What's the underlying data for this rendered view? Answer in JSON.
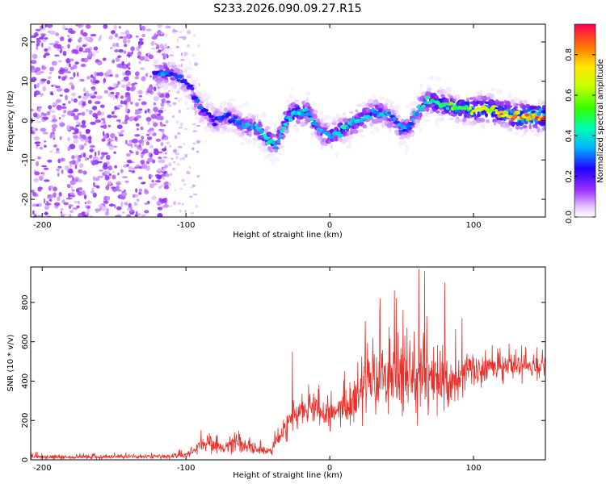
{
  "title": "S233.2026.090.09.27.R15",
  "chart_data": [
    {
      "type": "heatmap",
      "name": "spectrogram",
      "xlabel": "Height of straight line (km)",
      "ylabel": "Frequency (Hz)",
      "xlim": [
        -208,
        150
      ],
      "ylim": [
        -24.5,
        24.5
      ],
      "xticks": [
        -200,
        -100,
        0,
        100
      ],
      "yticks": [
        -20,
        -10,
        0,
        10,
        20
      ],
      "colorbar": {
        "label": "Normalized spectral amplitude",
        "range": [
          0.0,
          0.95
        ],
        "ticks": [
          0.0,
          0.2,
          0.4,
          0.6,
          0.8
        ],
        "ticklabels": [
          "0.0",
          "0.2",
          "0.4",
          "0.6",
          "0.8"
        ]
      },
      "ridge": {
        "x": [
          -122,
          -112,
          -105,
          -98,
          -90,
          -80,
          -70,
          -60,
          -50,
          -42,
          -37,
          -30,
          -25,
          -20,
          -15,
          -10,
          -5,
          0,
          5,
          10,
          20,
          30,
          38,
          45,
          50,
          55,
          60,
          65,
          70,
          80,
          90,
          100,
          110,
          120,
          130,
          140,
          150
        ],
        "frequency": [
          12,
          12,
          11,
          9,
          3,
          0,
          1,
          -1,
          -2,
          -5,
          -6,
          0,
          2,
          2,
          2,
          -1,
          -3,
          -4,
          -3,
          -2,
          0,
          2,
          2,
          0,
          -2,
          -2,
          2,
          4,
          5,
          4,
          3,
          3,
          3,
          2,
          1,
          1,
          1
        ],
        "amplitude": [
          0.3,
          0.35,
          0.3,
          0.25,
          0.3,
          0.3,
          0.3,
          0.35,
          0.4,
          0.45,
          0.4,
          0.45,
          0.45,
          0.45,
          0.45,
          0.4,
          0.35,
          0.4,
          0.45,
          0.45,
          0.45,
          0.4,
          0.4,
          0.35,
          0.35,
          0.35,
          0.4,
          0.45,
          0.5,
          0.55,
          0.6,
          0.7,
          0.75,
          0.8,
          0.85,
          0.9,
          0.9
        ]
      }
    },
    {
      "type": "line",
      "name": "snr",
      "xlabel": "Height of straight line (km)",
      "ylabel": "SNR (10 * v/v)",
      "xlim": [
        -208,
        150
      ],
      "ylim": [
        0,
        980
      ],
      "xticks": [
        -200,
        -100,
        0,
        100
      ],
      "yticks": [
        0,
        200,
        400,
        600,
        800
      ],
      "color": "#e8302a",
      "envelope": {
        "x": [
          -208,
          -180,
          -150,
          -120,
          -110,
          -100,
          -95,
          -90,
          -85,
          -80,
          -75,
          -70,
          -65,
          -60,
          -55,
          -50,
          -45,
          -40,
          -35,
          -30,
          -28,
          -25,
          -20,
          -15,
          -10,
          -5,
          0,
          5,
          10,
          15,
          20,
          25,
          30,
          35,
          40,
          45,
          50,
          55,
          60,
          65,
          70,
          75,
          80,
          90,
          100,
          110,
          120,
          130,
          140,
          150
        ],
        "mean": [
          15,
          12,
          15,
          15,
          18,
          25,
          45,
          70,
          90,
          80,
          60,
          70,
          90,
          70,
          60,
          50,
          45,
          60,
          110,
          160,
          200,
          230,
          250,
          240,
          260,
          240,
          220,
          250,
          280,
          300,
          330,
          360,
          380,
          390,
          400,
          410,
          420,
          410,
          400,
          420,
          430,
          410,
          400,
          420,
          450,
          460,
          470,
          475,
          475,
          480
        ],
        "spread": [
          12,
          10,
          10,
          10,
          12,
          15,
          20,
          35,
          50,
          45,
          30,
          35,
          45,
          35,
          30,
          25,
          25,
          30,
          45,
          55,
          60,
          70,
          70,
          65,
          70,
          65,
          60,
          70,
          80,
          110,
          140,
          160,
          170,
          180,
          190,
          190,
          190,
          180,
          170,
          170,
          160,
          150,
          130,
          110,
          90,
          70,
          60,
          55,
          50,
          50
        ],
        "peaks": [
          {
            "x": -26,
            "y": 550
          },
          {
            "x": 35,
            "y": 820
          },
          {
            "x": 45,
            "y": 860
          },
          {
            "x": 62,
            "y": 970
          },
          {
            "x": 66,
            "y": 960
          },
          {
            "x": 80,
            "y": 900
          },
          {
            "x": 92,
            "y": 720
          }
        ]
      }
    }
  ]
}
